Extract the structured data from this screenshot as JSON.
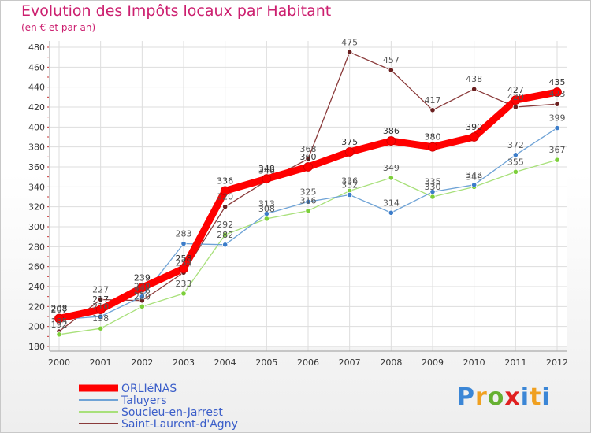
{
  "chart_data": {
    "type": "line",
    "title": "Evolution des Impôts locaux par Habitant",
    "subtitle": "(en € et par an)",
    "x": [
      "2000",
      "2001",
      "2002",
      "2003",
      "2004",
      "2005",
      "2006",
      "2007",
      "2008",
      "2009",
      "2010",
      "2011",
      "2012"
    ],
    "ylim": [
      180,
      480
    ],
    "yticks": [
      180,
      200,
      220,
      240,
      260,
      280,
      300,
      320,
      340,
      360,
      380,
      400,
      420,
      440,
      460,
      480
    ],
    "grid": true,
    "legend_position": "bottom-left",
    "series": [
      {
        "name": "ORLIéNAS",
        "color": "#ff0000",
        "point_color": "#ff0000",
        "label_color": "#333333",
        "values": [
          208,
          217,
          239,
          258,
          336,
          348,
          360,
          375,
          386,
          380,
          390,
          427,
          435
        ]
      },
      {
        "name": "Taluyers",
        "color": "#6fa3d6",
        "point_color": "#3b7cc9",
        "label_color": "#555555",
        "values": [
          207,
          210,
          230,
          283,
          282,
          313,
          325,
          332,
          314,
          335,
          342,
          372,
          399
        ]
      },
      {
        "name": "Soucieu-en-Jarrest",
        "color": "#a8e07a",
        "point_color": "#7ccf3a",
        "label_color": "#555555",
        "values": [
          192,
          198,
          220,
          233,
          292,
          308,
          316,
          336,
          349,
          330,
          340,
          355,
          367
        ]
      },
      {
        "name": "Saint-Laurent-d'Agny",
        "color": "#8a3a3a",
        "point_color": "#6a1f1f",
        "label_color": "#555555",
        "values": [
          195,
          227,
          226,
          254,
          320,
          346,
          368,
          475,
          457,
          417,
          438,
          420,
          423
        ]
      }
    ]
  },
  "brand": {
    "logo": [
      "P",
      "r",
      "o",
      "x",
      "i",
      "t",
      "i"
    ]
  }
}
